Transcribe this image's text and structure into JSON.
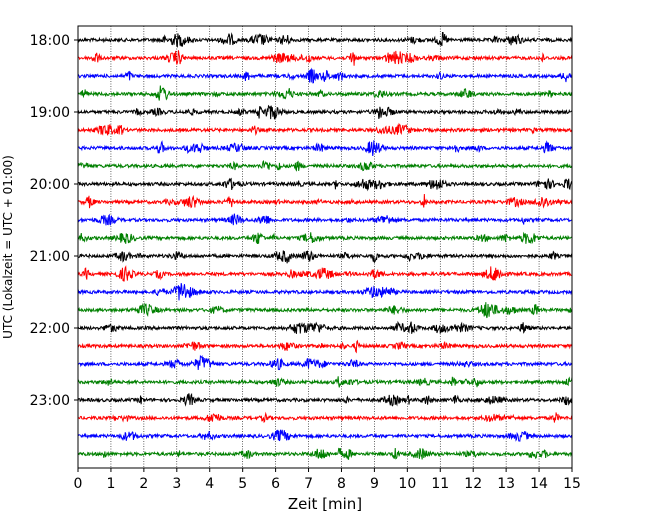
{
  "chart_data": {
    "type": "line",
    "title": "",
    "xlabel": "Zeit  [min]",
    "ylabel": "UTC (Lokalzeit = UTC + 01:00)",
    "xlim": [
      0,
      15
    ],
    "x_ticks": [
      0,
      1,
      2,
      3,
      4,
      5,
      6,
      7,
      8,
      9,
      10,
      11,
      12,
      13,
      14,
      15
    ],
    "x_tick_labels": [
      "0",
      "1",
      "2",
      "3",
      "4",
      "5",
      "6",
      "7",
      "8",
      "9",
      "10",
      "11",
      "12",
      "13",
      "14",
      "15"
    ],
    "y_tick_labels": [
      "18:00",
      "19:00",
      "20:00",
      "21:00",
      "22:00",
      "23:00"
    ],
    "y_tick_rows": [
      0,
      4,
      8,
      12,
      16,
      20
    ],
    "rows": [
      "18:00",
      "18:15",
      "18:30",
      "18:45",
      "19:00",
      "19:15",
      "19:30",
      "19:45",
      "20:00",
      "20:15",
      "20:30",
      "20:45",
      "21:00",
      "21:15",
      "21:30",
      "21:45",
      "22:00",
      "22:15",
      "22:30",
      "22:45",
      "23:00",
      "23:15",
      "23:30",
      "23:45"
    ],
    "trace_colors": [
      "#000000",
      "#ff0000",
      "#0000ff",
      "#008000"
    ],
    "grid": "vertical dotted lines at every minute",
    "legend": "none"
  }
}
